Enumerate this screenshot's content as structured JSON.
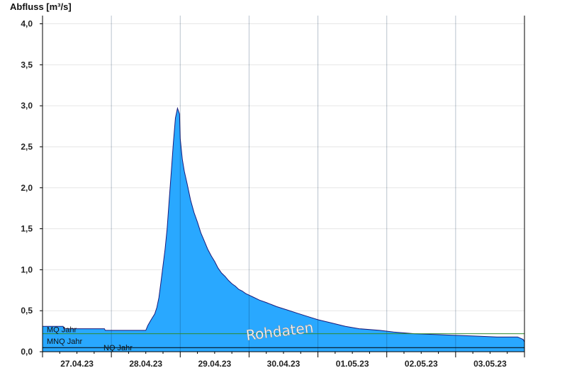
{
  "chart_data": {
    "type": "area",
    "title": "",
    "ylabel": "Abfluss [m³/s]",
    "xlabel": "",
    "ylim": [
      0,
      4.1
    ],
    "xlim": [
      0,
      7
    ],
    "yticks": [
      0,
      0.5,
      1.0,
      1.5,
      2.0,
      2.5,
      3.0,
      3.5,
      4.0
    ],
    "ytick_labels": [
      "0,0",
      "0,5",
      "1,0",
      "1,5",
      "2,0",
      "2,5",
      "3,0",
      "3,5",
      "4,0"
    ],
    "x_date_labels": [
      "27.04.23",
      "28.04.23",
      "29.04.23",
      "30.04.23",
      "01.05.23",
      "02.05.23",
      "03.05.23"
    ],
    "grid": true,
    "colors": {
      "fill": "#29a8ff",
      "outline": "#1a1a7a",
      "mq": "#2e8b2e",
      "nq": "#000000"
    },
    "reference_lines": [
      {
        "label": "MQ Jahr",
        "value": 0.22
      },
      {
        "label": "MNQ Jahr",
        "value": 0.06
      },
      {
        "label": "NQ Jahr",
        "value": 0.05
      }
    ],
    "watermark": "Rohdaten",
    "series": [
      {
        "x": [
          0,
          0.3,
          0.31,
          0.9,
          0.91,
          1.5,
          1.53,
          1.57,
          1.6,
          1.63,
          1.66,
          1.69,
          1.72,
          1.75,
          1.78,
          1.81,
          1.84,
          1.87,
          1.9,
          1.93,
          1.96,
          1.99,
          2.0,
          2.03,
          2.06,
          2.1,
          2.15,
          2.2,
          2.25,
          2.3,
          2.35,
          2.4,
          2.45,
          2.5,
          2.55,
          2.6,
          2.65,
          2.7,
          2.75,
          2.8,
          2.85,
          2.9,
          2.95,
          3.0,
          3.05,
          3.15,
          3.25,
          3.4,
          3.55,
          3.7,
          3.85,
          4.0,
          4.2,
          4.4,
          4.6,
          4.9,
          5.1,
          5.4,
          5.7,
          6.0,
          6.3,
          6.6,
          6.9,
          6.98,
          7.0
        ],
        "y": [
          0.31,
          0.31,
          0.28,
          0.28,
          0.26,
          0.26,
          0.32,
          0.38,
          0.42,
          0.46,
          0.54,
          0.66,
          0.85,
          1.05,
          1.25,
          1.5,
          1.85,
          2.2,
          2.55,
          2.85,
          2.97,
          2.9,
          2.6,
          2.35,
          2.2,
          2.05,
          1.85,
          1.7,
          1.58,
          1.45,
          1.35,
          1.25,
          1.17,
          1.1,
          1.02,
          0.96,
          0.92,
          0.87,
          0.83,
          0.8,
          0.76,
          0.74,
          0.71,
          0.69,
          0.67,
          0.63,
          0.6,
          0.55,
          0.51,
          0.47,
          0.43,
          0.39,
          0.35,
          0.31,
          0.28,
          0.26,
          0.24,
          0.22,
          0.21,
          0.2,
          0.19,
          0.18,
          0.18,
          0.15,
          0.12
        ]
      }
    ]
  }
}
